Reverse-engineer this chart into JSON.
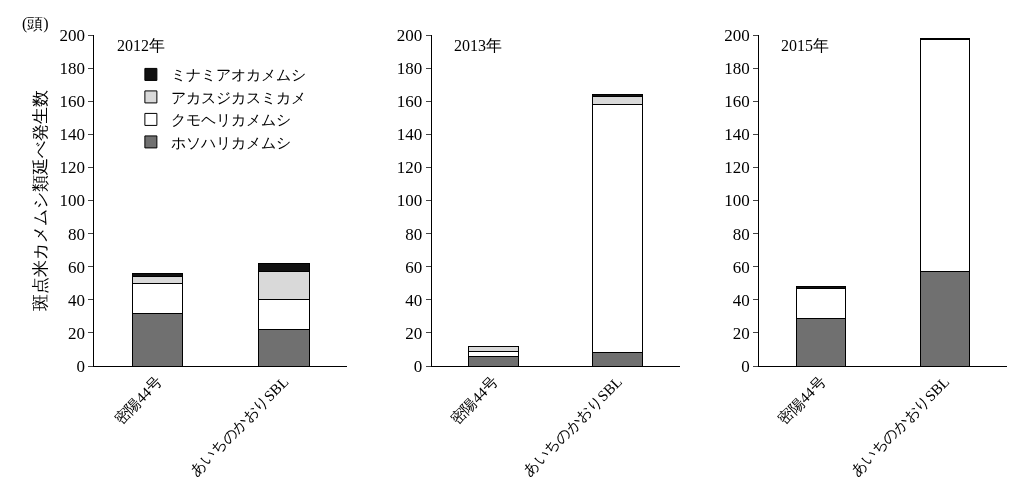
{
  "chart_data": [
    {
      "type": "bar",
      "title": "2012年",
      "ylabel": "斑点米カメムシ類延べ発生数",
      "annotations": [
        "(頭)"
      ],
      "stacked": true,
      "legend": "top",
      "categories": [
        "密陽44号",
        "あいちのかおりSBL"
      ],
      "ylim": [
        0,
        200
      ],
      "yticks": [
        0,
        20,
        40,
        60,
        80,
        100,
        120,
        140,
        160,
        180,
        200
      ],
      "series": [
        {
          "name": "ホソハリカメムシ",
          "color": "#707070",
          "values": [
            32,
            22
          ]
        },
        {
          "name": "クモヘリカメムシ",
          "color": "#ffffff",
          "values": [
            18,
            18
          ]
        },
        {
          "name": "アカスジカスミカメ",
          "color": "#d9d9d9",
          "values": [
            4,
            17
          ]
        },
        {
          "name": "ミナミアオカメムシ",
          "color": "#111111",
          "values": [
            2,
            5
          ]
        }
      ]
    },
    {
      "type": "bar",
      "title": "2013年",
      "stacked": true,
      "categories": [
        "密陽44号",
        "あいちのかおりSBL"
      ],
      "ylim": [
        0,
        200
      ],
      "yticks": [
        0,
        20,
        40,
        60,
        80,
        100,
        120,
        140,
        160,
        180,
        200
      ],
      "series": [
        {
          "color": "#707070",
          "values": [
            6,
            8
          ]
        },
        {
          "color": "#ffffff",
          "values": [
            3,
            150
          ]
        },
        {
          "color": "#d9d9d9",
          "values": [
            3,
            5
          ]
        },
        {
          "color": "#111111",
          "values": [
            null,
            1
          ]
        }
      ]
    },
    {
      "type": "bar",
      "title": "2015年",
      "stacked": true,
      "categories": [
        "密陽44号",
        "あいちのかおりSBL"
      ],
      "ylim": [
        0,
        200
      ],
      "yticks": [
        0,
        20,
        40,
        60,
        80,
        100,
        120,
        140,
        160,
        180,
        200
      ],
      "series": [
        {
          "color": "#707070",
          "values": [
            29,
            57
          ]
        },
        {
          "color": "#ffffff",
          "values": [
            18,
            140
          ]
        },
        {
          "color": "#d9d9d9",
          "values": [
            null,
            null
          ]
        },
        {
          "color": "#111111",
          "values": [
            1,
            1
          ]
        }
      ]
    }
  ]
}
